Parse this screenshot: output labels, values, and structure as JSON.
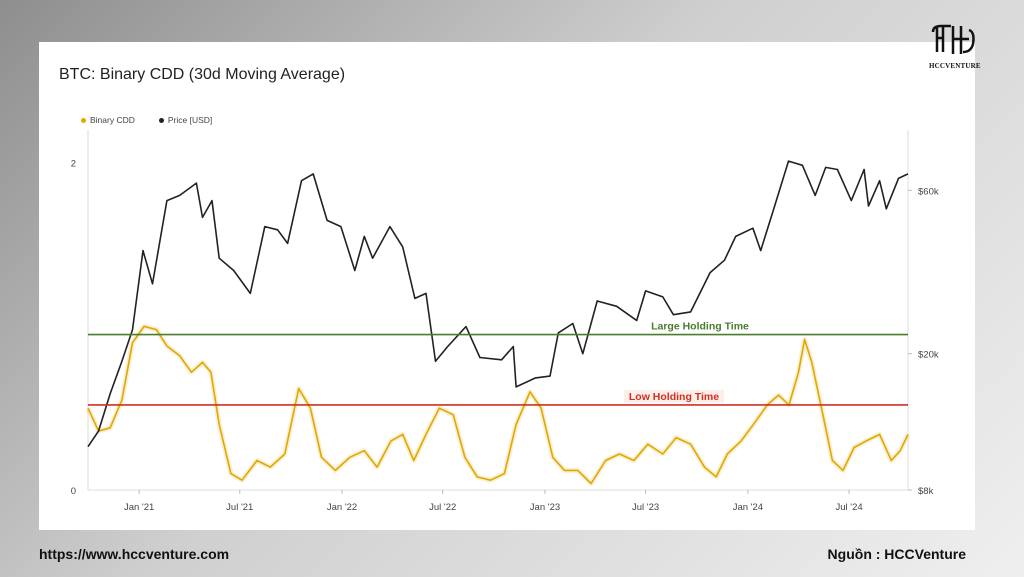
{
  "brand": {
    "name": "HCCVENTURE",
    "url": "https://www.hccventure.com",
    "source": "Nguồn : HCCVenture"
  },
  "chart_data": {
    "type": "line",
    "title": "BTC: Binary CDD (30d Moving Average)",
    "x_tick_labels": [
      "Jan '21",
      "Jul '21",
      "Jan '22",
      "Jul '22",
      "Jan '23",
      "Jul '23",
      "Jan '24",
      "Jul '24"
    ],
    "x_range": [
      "2020-10-01",
      "2024-10-15"
    ],
    "y_left": {
      "ticks": [
        0,
        2
      ],
      "range": [
        0,
        2.2
      ]
    },
    "y_right": {
      "scale": "log",
      "tick_labels": [
        "$8k",
        "$20k",
        "$60k"
      ],
      "ticks": [
        8000,
        20000,
        60000
      ],
      "range": [
        8000,
        90000
      ]
    },
    "legend": [
      "Binary CDD",
      "Price [USD]"
    ],
    "legend_position": "top-left",
    "reference_lines": [
      {
        "label": "Large Holding Time",
        "y": 0.95,
        "color": "#4a7c2e"
      },
      {
        "label": "Low Holding Time",
        "y": 0.52,
        "color": "#d0311f"
      }
    ],
    "series": [
      {
        "name": "Binary CDD",
        "axis": "left",
        "color": "#e0a800",
        "points": [
          [
            "2020-10-01",
            0.5
          ],
          [
            "2020-10-20",
            0.36
          ],
          [
            "2020-11-10",
            0.38
          ],
          [
            "2020-12-01",
            0.55
          ],
          [
            "2020-12-20",
            0.9
          ],
          [
            "2021-01-10",
            1.0
          ],
          [
            "2021-02-01",
            0.98
          ],
          [
            "2021-02-20",
            0.88
          ],
          [
            "2021-03-15",
            0.82
          ],
          [
            "2021-04-05",
            0.72
          ],
          [
            "2021-04-25",
            0.78
          ],
          [
            "2021-05-10",
            0.72
          ],
          [
            "2021-05-25",
            0.4
          ],
          [
            "2021-06-15",
            0.1
          ],
          [
            "2021-07-05",
            0.06
          ],
          [
            "2021-08-01",
            0.18
          ],
          [
            "2021-08-25",
            0.14
          ],
          [
            "2021-09-20",
            0.22
          ],
          [
            "2021-10-15",
            0.62
          ],
          [
            "2021-11-05",
            0.5
          ],
          [
            "2021-11-25",
            0.2
          ],
          [
            "2021-12-20",
            0.12
          ],
          [
            "2022-01-15",
            0.2
          ],
          [
            "2022-02-10",
            0.24
          ],
          [
            "2022-03-05",
            0.14
          ],
          [
            "2022-03-30",
            0.3
          ],
          [
            "2022-04-20",
            0.34
          ],
          [
            "2022-05-10",
            0.18
          ],
          [
            "2022-06-01",
            0.34
          ],
          [
            "2022-06-25",
            0.5
          ],
          [
            "2022-07-20",
            0.46
          ],
          [
            "2022-08-10",
            0.2
          ],
          [
            "2022-09-01",
            0.08
          ],
          [
            "2022-09-25",
            0.06
          ],
          [
            "2022-10-20",
            0.1
          ],
          [
            "2022-11-10",
            0.4
          ],
          [
            "2022-12-05",
            0.6
          ],
          [
            "2022-12-25",
            0.5
          ],
          [
            "2023-01-15",
            0.2
          ],
          [
            "2023-02-05",
            0.12
          ],
          [
            "2023-03-01",
            0.12
          ],
          [
            "2023-03-25",
            0.04
          ],
          [
            "2023-04-20",
            0.18
          ],
          [
            "2023-05-15",
            0.22
          ],
          [
            "2023-06-10",
            0.18
          ],
          [
            "2023-07-05",
            0.28
          ],
          [
            "2023-08-01",
            0.22
          ],
          [
            "2023-08-25",
            0.32
          ],
          [
            "2023-09-20",
            0.28
          ],
          [
            "2023-10-15",
            0.14
          ],
          [
            "2023-11-05",
            0.08
          ],
          [
            "2023-11-25",
            0.22
          ],
          [
            "2023-12-20",
            0.3
          ],
          [
            "2024-01-15",
            0.42
          ],
          [
            "2024-02-05",
            0.52
          ],
          [
            "2024-02-25",
            0.58
          ],
          [
            "2024-03-15",
            0.52
          ],
          [
            "2024-04-01",
            0.72
          ],
          [
            "2024-04-12",
            0.92
          ],
          [
            "2024-04-25",
            0.78
          ],
          [
            "2024-05-15",
            0.46
          ],
          [
            "2024-06-01",
            0.18
          ],
          [
            "2024-06-20",
            0.12
          ],
          [
            "2024-07-10",
            0.26
          ],
          [
            "2024-08-01",
            0.3
          ],
          [
            "2024-08-25",
            0.34
          ],
          [
            "2024-09-15",
            0.18
          ],
          [
            "2024-10-01",
            0.24
          ],
          [
            "2024-10-15",
            0.34
          ]
        ]
      },
      {
        "name": "Price [USD]",
        "axis": "right",
        "color": "#222222",
        "points": [
          [
            "2020-10-01",
            10700
          ],
          [
            "2020-10-20",
            11900
          ],
          [
            "2020-11-10",
            15300
          ],
          [
            "2020-12-01",
            19000
          ],
          [
            "2020-12-20",
            23500
          ],
          [
            "2021-01-08",
            40000
          ],
          [
            "2021-01-25",
            32000
          ],
          [
            "2021-02-20",
            56000
          ],
          [
            "2021-03-15",
            58000
          ],
          [
            "2021-04-14",
            63000
          ],
          [
            "2021-04-25",
            50000
          ],
          [
            "2021-05-12",
            56000
          ],
          [
            "2021-05-25",
            38000
          ],
          [
            "2021-06-20",
            35000
          ],
          [
            "2021-07-20",
            30000
          ],
          [
            "2021-08-15",
            47000
          ],
          [
            "2021-09-07",
            46000
          ],
          [
            "2021-09-25",
            42000
          ],
          [
            "2021-10-20",
            64000
          ],
          [
            "2021-11-10",
            67000
          ],
          [
            "2021-12-05",
            49000
          ],
          [
            "2021-12-30",
            47000
          ],
          [
            "2022-01-24",
            35000
          ],
          [
            "2022-02-10",
            44000
          ],
          [
            "2022-02-25",
            38000
          ],
          [
            "2022-03-28",
            47000
          ],
          [
            "2022-04-20",
            41000
          ],
          [
            "2022-05-12",
            29000
          ],
          [
            "2022-06-01",
            30000
          ],
          [
            "2022-06-18",
            19000
          ],
          [
            "2022-07-10",
            21000
          ],
          [
            "2022-08-12",
            24000
          ],
          [
            "2022-09-06",
            19500
          ],
          [
            "2022-10-15",
            19200
          ],
          [
            "2022-11-05",
            21000
          ],
          [
            "2022-11-10",
            16000
          ],
          [
            "2022-12-15",
            17000
          ],
          [
            "2023-01-10",
            17200
          ],
          [
            "2023-01-25",
            23000
          ],
          [
            "2023-02-20",
            24500
          ],
          [
            "2023-03-10",
            20000
          ],
          [
            "2023-04-05",
            28500
          ],
          [
            "2023-05-10",
            27500
          ],
          [
            "2023-06-15",
            25000
          ],
          [
            "2023-07-01",
            30500
          ],
          [
            "2023-08-01",
            29300
          ],
          [
            "2023-08-20",
            26000
          ],
          [
            "2023-09-20",
            26500
          ],
          [
            "2023-10-25",
            34500
          ],
          [
            "2023-11-20",
            37500
          ],
          [
            "2023-12-10",
            44000
          ],
          [
            "2024-01-10",
            46500
          ],
          [
            "2024-01-24",
            40000
          ],
          [
            "2024-02-15",
            52000
          ],
          [
            "2024-03-14",
            73000
          ],
          [
            "2024-04-08",
            71000
          ],
          [
            "2024-05-01",
            58000
          ],
          [
            "2024-05-20",
            70000
          ],
          [
            "2024-06-10",
            69000
          ],
          [
            "2024-07-05",
            56000
          ],
          [
            "2024-07-28",
            69000
          ],
          [
            "2024-08-05",
            54000
          ],
          [
            "2024-08-25",
            64000
          ],
          [
            "2024-09-06",
            53000
          ],
          [
            "2024-09-28",
            65000
          ],
          [
            "2024-10-15",
            67000
          ]
        ]
      }
    ]
  }
}
